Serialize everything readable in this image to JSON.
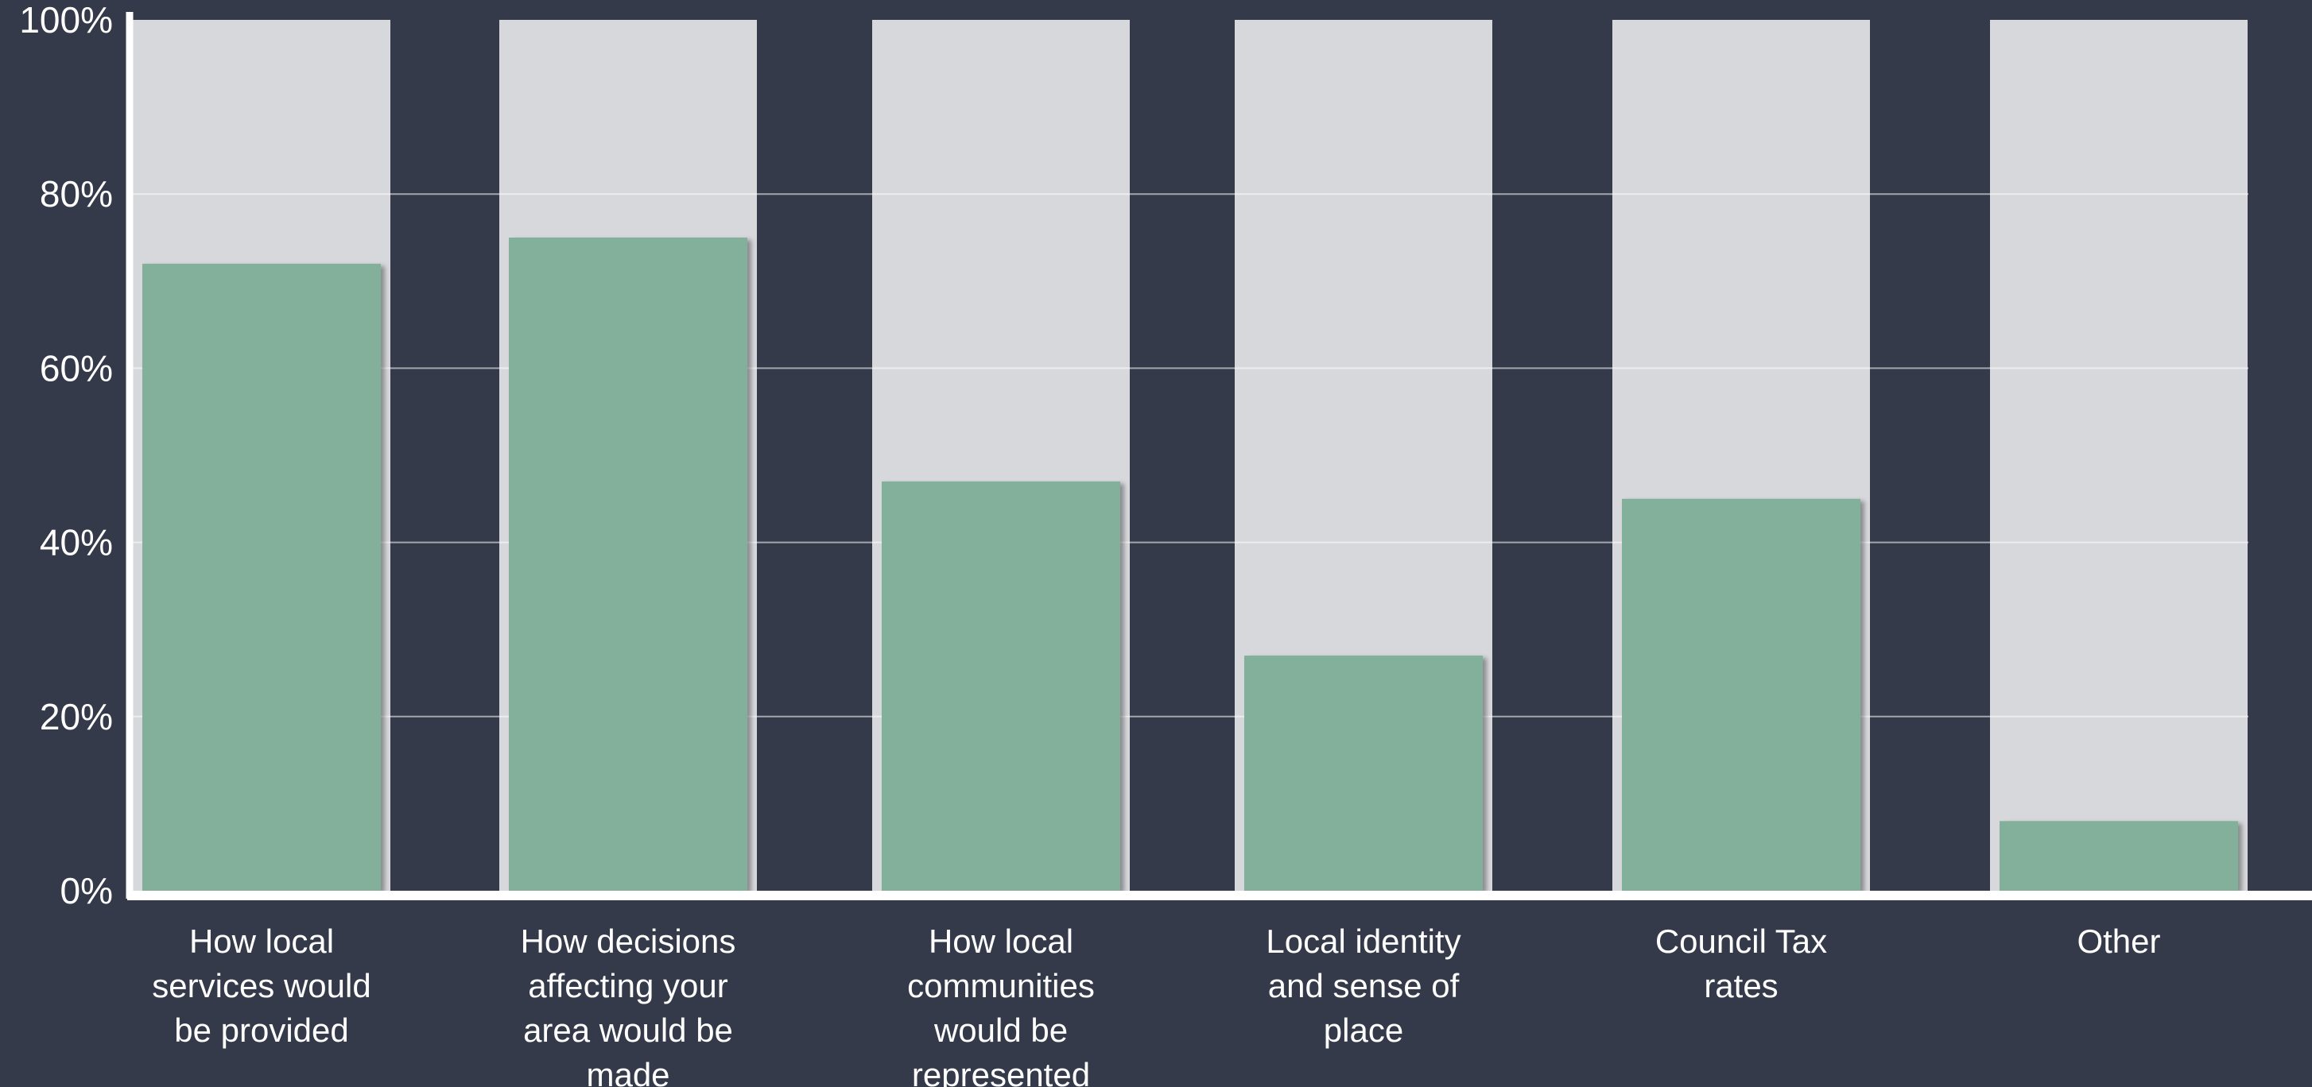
{
  "chart_data": {
    "type": "bar",
    "title": "",
    "xlabel": "",
    "ylabel": "",
    "categories": [
      "How local\nservices would\nbe provided",
      "How decisions\naffecting your\narea would be\nmade",
      "How local\ncommunities\nwould be\nrepresented",
      "Local identity\nand sense of\nplace",
      "Council Tax\nrates",
      "Other"
    ],
    "values": [
      72,
      75,
      47,
      27,
      45,
      8
    ],
    "ylim": [
      0,
      100
    ],
    "y_ticks": [
      0,
      20,
      40,
      60,
      80,
      100
    ],
    "y_tick_labels": [
      "0%",
      "20%",
      "40%",
      "60%",
      "80%",
      "100%"
    ],
    "grid": true,
    "legend": "none",
    "colors": {
      "background": "#343a4a",
      "bar": "#82b09a",
      "track": "#d7d8dc",
      "axis": "#ffffff",
      "grid": "#ffffff",
      "text": "#ffffff"
    }
  }
}
